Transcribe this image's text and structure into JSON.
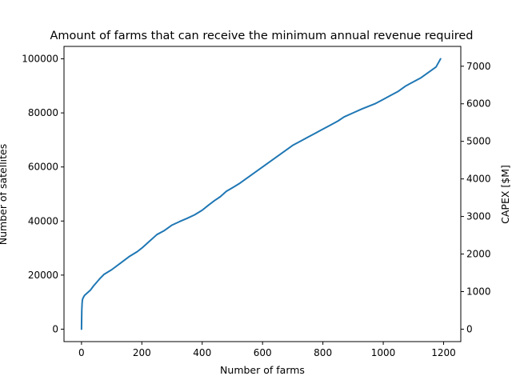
{
  "chart_data": {
    "type": "line",
    "title": "Amount of farms that can receive the minimum annual revenue required",
    "xlabel": "Number of farms",
    "ylabel": "Number of satellites",
    "ylabel_right": "CAPEX [$M]",
    "xlim": [
      -58,
      1257
    ],
    "ylim": [
      -4600,
      104600
    ],
    "ylim_right": [
      -331,
      7528
    ],
    "xticks": [
      0,
      200,
      400,
      600,
      800,
      1000,
      1200
    ],
    "yticks": [
      0,
      20000,
      40000,
      60000,
      80000,
      100000
    ],
    "yticks_right": [
      0,
      1000,
      2000,
      3000,
      4000,
      5000,
      6000,
      7000
    ],
    "grid": false,
    "legend": "none",
    "series": [
      {
        "color": "#1f77b4",
        "x": [
          0,
          0.5,
          1,
          2,
          3,
          5,
          10,
          20,
          30,
          40,
          50,
          60,
          75,
          100,
          130,
          160,
          185,
          200,
          225,
          250,
          275,
          300,
          325,
          350,
          375,
          400,
          420,
          440,
          460,
          480,
          500,
          525,
          550,
          575,
          600,
          625,
          650,
          675,
          700,
          725,
          750,
          775,
          800,
          825,
          850,
          870,
          900,
          930,
          975,
          1000,
          1025,
          1050,
          1075,
          1100,
          1125,
          1150,
          1175,
          1190
        ],
        "y": [
          0,
          4000,
          7000,
          9500,
          10800,
          11500,
          12500,
          13500,
          14500,
          16000,
          17300,
          18600,
          20300,
          22000,
          24500,
          27000,
          28700,
          30000,
          32500,
          35000,
          36500,
          38500,
          39800,
          41000,
          42300,
          44000,
          45800,
          47500,
          49000,
          51000,
          52300,
          54000,
          56000,
          58000,
          60000,
          62000,
          64000,
          66000,
          68000,
          69500,
          71000,
          72500,
          74000,
          75500,
          77000,
          78500,
          80000,
          81500,
          83500,
          85000,
          86500,
          88000,
          90000,
          91500,
          93000,
          95000,
          97000,
          100000
        ]
      }
    ]
  }
}
